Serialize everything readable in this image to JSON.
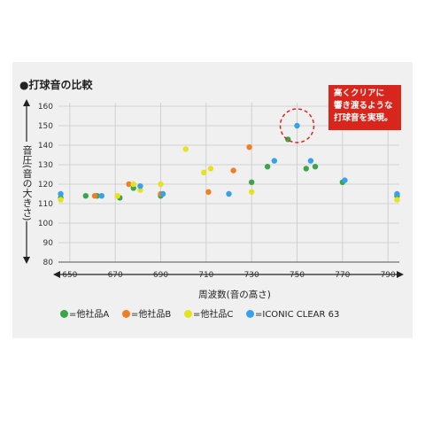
{
  "chart_data": {
    "type": "scatter",
    "title": "●打球音の比較",
    "xlabel": "周波数(音の高さ)",
    "ylabel": "音圧(音の大きさ)",
    "xlim": [
      645,
      795
    ],
    "ylim": [
      80,
      160
    ],
    "xticks": [
      650,
      670,
      690,
      710,
      730,
      750,
      770,
      790
    ],
    "yticks": [
      80,
      90,
      100,
      110,
      120,
      130,
      140,
      150,
      160
    ],
    "grid": true,
    "legend_position": "bottom",
    "series": [
      {
        "name": "=他社品A",
        "color": "#3aa54a",
        "points": [
          [
            646,
            113
          ],
          [
            657,
            114
          ],
          [
            662,
            114
          ],
          [
            672,
            113
          ],
          [
            678,
            118
          ],
          [
            690,
            114
          ],
          [
            730,
            121
          ],
          [
            737,
            129
          ],
          [
            746,
            143
          ],
          [
            754,
            128
          ],
          [
            758,
            129
          ],
          [
            770,
            121
          ],
          [
            794,
            114
          ]
        ]
      },
      {
        "name": "=他社品B",
        "color": "#ee7f22",
        "points": [
          [
            661,
            114
          ],
          [
            676,
            120
          ],
          [
            690,
            115
          ],
          [
            711,
            116
          ],
          [
            722,
            127
          ],
          [
            729,
            139
          ]
        ]
      },
      {
        "name": "=他社品C",
        "color": "#e6e21f",
        "points": [
          [
            646,
            112
          ],
          [
            671,
            114
          ],
          [
            678,
            120
          ],
          [
            681,
            117
          ],
          [
            690,
            120
          ],
          [
            701,
            138
          ],
          [
            709,
            126
          ],
          [
            712,
            128
          ],
          [
            730,
            116
          ],
          [
            794,
            112
          ]
        ]
      },
      {
        "name": "=ICONIC CLEAR 63",
        "color": "#36a2e8",
        "points": [
          [
            646,
            115
          ],
          [
            664,
            114
          ],
          [
            681,
            119
          ],
          [
            691,
            115
          ],
          [
            720,
            115
          ],
          [
            740,
            132
          ],
          [
            750,
            150
          ],
          [
            756,
            132
          ],
          [
            771,
            122
          ],
          [
            794,
            115
          ]
        ]
      }
    ],
    "highlight": {
      "series": "=ICONIC CLEAR 63",
      "point": [
        750,
        150
      ]
    }
  },
  "callout": {
    "lines": [
      "高くクリアに",
      "響き渡るような",
      "打球音を実現。"
    ]
  }
}
